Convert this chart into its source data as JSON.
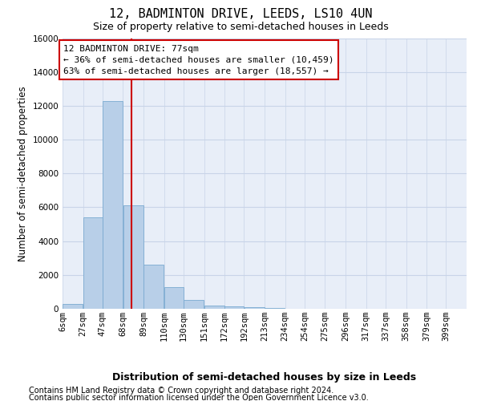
{
  "title": "12, BADMINTON DRIVE, LEEDS, LS10 4UN",
  "subtitle": "Size of property relative to semi-detached houses in Leeds",
  "xlabel": "Distribution of semi-detached houses by size in Leeds",
  "ylabel": "Number of semi-detached properties",
  "footnote1": "Contains HM Land Registry data © Crown copyright and database right 2024.",
  "footnote2": "Contains public sector information licensed under the Open Government Licence v3.0.",
  "annotation_title": "12 BADMINTON DRIVE: 77sqm",
  "annotation_line1": "← 36% of semi-detached houses are smaller (10,459)",
  "annotation_line2": "63% of semi-detached houses are larger (18,557) →",
  "property_size": 77,
  "bar_edges": [
    6,
    27,
    47,
    68,
    89,
    110,
    130,
    151,
    172,
    192,
    213,
    234,
    254,
    275,
    296,
    317,
    337,
    358,
    379,
    399,
    420
  ],
  "bar_heights": [
    300,
    5400,
    12300,
    6100,
    2600,
    1300,
    500,
    200,
    150,
    100,
    50,
    0,
    0,
    0,
    0,
    0,
    0,
    0,
    0,
    0
  ],
  "bar_color": "#b8cfe8",
  "bar_edgecolor": "#7aaad0",
  "vline_color": "#cc0000",
  "vline_x": 77,
  "ylim": [
    0,
    16000
  ],
  "yticks": [
    0,
    2000,
    4000,
    6000,
    8000,
    10000,
    12000,
    14000,
    16000
  ],
  "grid_color": "#c8d4e8",
  "bg_color": "#e8eef8",
  "title_fontsize": 11,
  "subtitle_fontsize": 9,
  "axis_label_fontsize": 8.5,
  "tick_fontsize": 7.5,
  "annotation_fontsize": 8,
  "footnote_fontsize": 7
}
